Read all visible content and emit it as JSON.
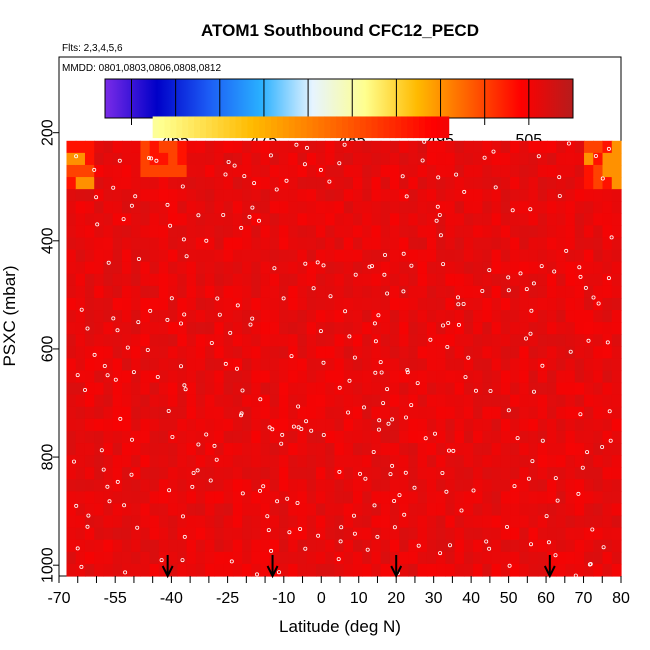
{
  "chart_data": {
    "type": "heatmap",
    "title": "ATOM1 Southbound CFC12_PECD",
    "annotations": [
      "Flts: 2,3,4,5,6",
      "MMDD: 0801,0803,0806,0808,0812"
    ],
    "xlabel": "Latitude (deg N)",
    "ylabel": "PSXC (mbar)",
    "xlim": [
      -70,
      80
    ],
    "ylim": [
      1020,
      60
    ],
    "y_reversed": true,
    "x_ticks": [
      -70,
      -55,
      -40,
      -25,
      -10,
      0,
      10,
      20,
      30,
      40,
      50,
      60,
      70,
      80
    ],
    "x_ticks_minor": [
      -65,
      -60,
      -50,
      -45,
      -35,
      -30,
      -20,
      -15,
      -5,
      5,
      15,
      25,
      35,
      45,
      55,
      65,
      75
    ],
    "y_ticks": [
      200,
      400,
      600,
      800,
      1000
    ],
    "colorbar": {
      "range": [
        457,
        510
      ],
      "tick_values": [
        465,
        475,
        485,
        495,
        505
      ],
      "colors": [
        "#7a2be8",
        "#0000c8",
        "#1c5cf5",
        "#29b0ff",
        "#e7f4ff",
        "#ffff8e",
        "#ffba00",
        "#ff5f00",
        "#ff0000",
        "#b61c1c"
      ]
    },
    "grid": false,
    "legend_position": "top",
    "data_extent": {
      "x_range": [
        -68,
        80
      ],
      "pressure_range": [
        215,
        1020
      ]
    },
    "top_strip": {
      "pressure_range": [
        170,
        210
      ],
      "x_range": [
        -45,
        34
      ],
      "values_start": 486,
      "values_end": 505
    },
    "field_summary": {
      "dominant_value": 506,
      "high_lat_upper_values": [
        495,
        500,
        503
      ]
    },
    "flight_markers_lat": [
      -41,
      -13,
      20,
      61
    ]
  }
}
